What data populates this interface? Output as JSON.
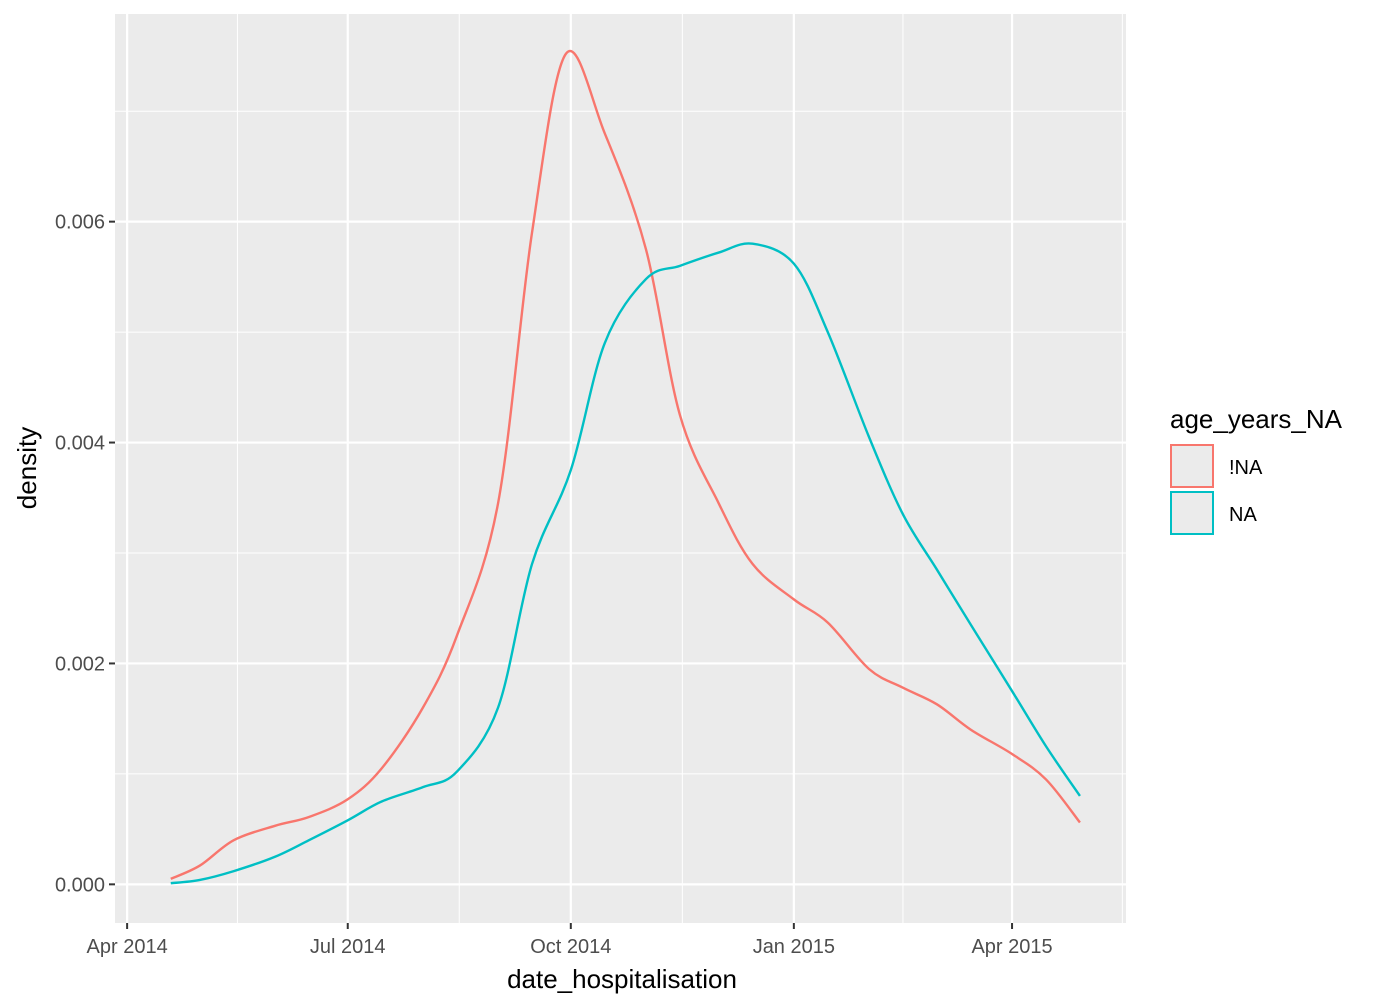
{
  "chart_data": {
    "type": "line",
    "subtype": "density",
    "xlabel": "date_hospitalisation",
    "ylabel": "density",
    "x_ticks": [
      "Apr 2014",
      "Jul 2014",
      "Oct 2014",
      "Jan 2015",
      "Apr 2015"
    ],
    "x_tick_dates": [
      "2014-04-01",
      "2014-07-01",
      "2014-10-01",
      "2015-01-01",
      "2015-04-01"
    ],
    "y_ticks": [
      "0.000",
      "0.002",
      "0.004",
      "0.006"
    ],
    "xlim": [
      "2014-03-27",
      "2015-05-18"
    ],
    "ylim": [
      -0.00035,
      0.00788
    ],
    "grid": true,
    "legend": {
      "title": "age_years_NA",
      "position": "right",
      "entries": [
        "!NA",
        "NA"
      ]
    },
    "series": [
      {
        "name": "!NA",
        "color": "#F8766D",
        "points": [
          [
            "2014-04-19",
            5e-05
          ],
          [
            "2014-05-01",
            0.00017
          ],
          [
            "2014-05-15",
            0.0004
          ],
          [
            "2014-06-01",
            0.00053
          ],
          [
            "2014-06-15",
            0.00061
          ],
          [
            "2014-07-01",
            0.00077
          ],
          [
            "2014-07-15",
            0.00105
          ],
          [
            "2014-08-01",
            0.0016
          ],
          [
            "2014-08-15",
            0.00225
          ],
          [
            "2014-09-01",
            0.00345
          ],
          [
            "2014-09-15",
            0.0059
          ],
          [
            "2014-09-29",
            0.00752
          ],
          [
            "2014-10-15",
            0.0068
          ],
          [
            "2014-11-01",
            0.00575
          ],
          [
            "2014-11-15",
            0.00425
          ],
          [
            "2014-12-01",
            0.00345
          ],
          [
            "2014-12-15",
            0.0029
          ],
          [
            "2015-01-01",
            0.00258
          ],
          [
            "2015-01-15",
            0.00237
          ],
          [
            "2015-02-01",
            0.00195
          ],
          [
            "2015-02-15",
            0.00178
          ],
          [
            "2015-03-01",
            0.00163
          ],
          [
            "2015-03-15",
            0.0014
          ],
          [
            "2015-04-01",
            0.00118
          ],
          [
            "2015-04-15",
            0.00095
          ],
          [
            "2015-04-29",
            0.00056
          ]
        ]
      },
      {
        "name": "NA",
        "color": "#00BFC4",
        "points": [
          [
            "2014-04-19",
            1e-05
          ],
          [
            "2014-05-01",
            4e-05
          ],
          [
            "2014-05-15",
            0.00012
          ],
          [
            "2014-06-01",
            0.00025
          ],
          [
            "2014-06-15",
            0.0004
          ],
          [
            "2014-07-01",
            0.00058
          ],
          [
            "2014-07-15",
            0.00075
          ],
          [
            "2014-08-01",
            0.00088
          ],
          [
            "2014-08-15",
            0.00102
          ],
          [
            "2014-09-01",
            0.0016
          ],
          [
            "2014-09-15",
            0.0029
          ],
          [
            "2014-10-01",
            0.00375
          ],
          [
            "2014-10-15",
            0.0049
          ],
          [
            "2014-11-01",
            0.00548
          ],
          [
            "2014-11-15",
            0.0056
          ],
          [
            "2014-12-01",
            0.00572
          ],
          [
            "2014-12-15",
            0.0058
          ],
          [
            "2015-01-01",
            0.00562
          ],
          [
            "2015-01-15",
            0.005
          ],
          [
            "2015-02-01",
            0.00405
          ],
          [
            "2015-02-15",
            0.00335
          ],
          [
            "2015-03-01",
            0.00285
          ],
          [
            "2015-03-15",
            0.00235
          ],
          [
            "2015-04-01",
            0.00175
          ],
          [
            "2015-04-15",
            0.00125
          ],
          [
            "2015-04-29",
            0.0008
          ]
        ]
      }
    ]
  }
}
